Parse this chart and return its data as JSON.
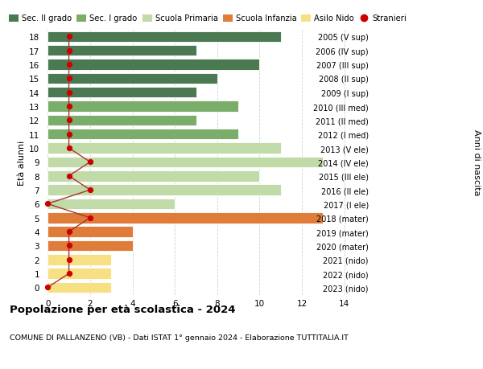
{
  "ages": [
    18,
    17,
    16,
    15,
    14,
    13,
    12,
    11,
    10,
    9,
    8,
    7,
    6,
    5,
    4,
    3,
    2,
    1,
    0
  ],
  "years": [
    "2005 (V sup)",
    "2006 (IV sup)",
    "2007 (III sup)",
    "2008 (II sup)",
    "2009 (I sup)",
    "2010 (III med)",
    "2011 (II med)",
    "2012 (I med)",
    "2013 (V ele)",
    "2014 (IV ele)",
    "2015 (III ele)",
    "2016 (II ele)",
    "2017 (I ele)",
    "2018 (mater)",
    "2019 (mater)",
    "2020 (mater)",
    "2021 (nido)",
    "2022 (nido)",
    "2023 (nido)"
  ],
  "values": [
    11,
    7,
    10,
    8,
    7,
    9,
    7,
    9,
    11,
    13,
    10,
    11,
    6,
    13,
    4,
    4,
    3,
    3,
    3
  ],
  "stranieri": [
    1,
    1,
    1,
    1,
    1,
    1,
    1,
    1,
    1,
    2,
    1,
    2,
    0,
    2,
    1,
    1,
    1,
    1,
    0
  ],
  "bar_colors": [
    "#4b7a52",
    "#4b7a52",
    "#4b7a52",
    "#4b7a52",
    "#4b7a52",
    "#7bad6a",
    "#7bad6a",
    "#7bad6a",
    "#c0dba8",
    "#c0dba8",
    "#c0dba8",
    "#c0dba8",
    "#c0dba8",
    "#e07c3a",
    "#e07c3a",
    "#e07c3a",
    "#f7e083",
    "#f7e083",
    "#f7e083"
  ],
  "legend_labels": [
    "Sec. II grado",
    "Sec. I grado",
    "Scuola Primaria",
    "Scuola Infanzia",
    "Asilo Nido",
    "Stranieri"
  ],
  "legend_colors_list": [
    "#4b7a52",
    "#7bad6a",
    "#c0dba8",
    "#e07c3a",
    "#f7e083",
    "#cc0000"
  ],
  "title": "Popolazione per età scolastica - 2024",
  "subtitle": "COMUNE DI PALLANZENO (VB) - Dati ISTAT 1° gennaio 2024 - Elaborazione TUTTITALIA.IT",
  "ylabel_left": "Età alunni",
  "ylabel_right": "Anni di nascita",
  "xlim_max": 15,
  "xticks": [
    0,
    2,
    4,
    6,
    8,
    10,
    12,
    14
  ],
  "bar_height": 0.78,
  "background_color": "#ffffff",
  "grid_color": "#cccccc",
  "stranieri_dot_color": "#cc0000",
  "stranieri_line_color": "#aa3333"
}
